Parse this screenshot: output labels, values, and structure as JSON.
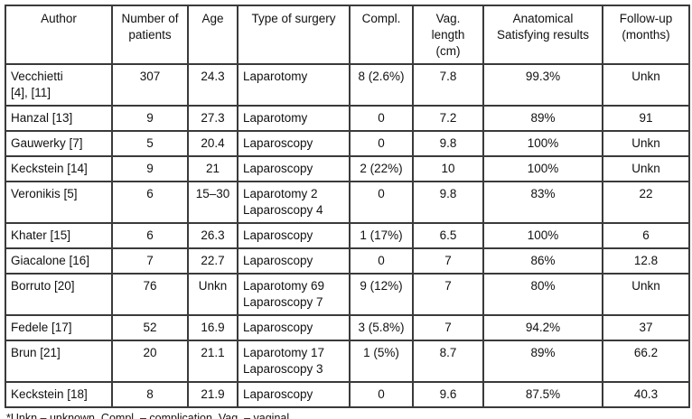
{
  "table": {
    "columns": [
      {
        "key": "author",
        "label": "Author",
        "width": 118
      },
      {
        "key": "patients",
        "label": "Number of\npatients",
        "width": 84
      },
      {
        "key": "age",
        "label": "Age",
        "width": 55
      },
      {
        "key": "surgery",
        "label": "Type of surgery",
        "width": 124
      },
      {
        "key": "compl",
        "label": "Compl.",
        "width": 70
      },
      {
        "key": "vag-length",
        "label": "Vag.\nlength\n(cm)",
        "width": 78
      },
      {
        "key": "anatomical",
        "label": "Anatomical\nSatisfying results",
        "width": 132
      },
      {
        "key": "follow-up",
        "label": "Follow-up\n(months)",
        "width": 96
      }
    ],
    "rows": [
      {
        "size": "tall",
        "cells": [
          "Vecchietti\n[4], [11]",
          "307",
          "24.3",
          "Laparotomy",
          "8 (2.6%)",
          "7.8",
          "99.3%",
          "Unkn"
        ]
      },
      {
        "size": "single",
        "cells": [
          "Hanzal [13]",
          "9",
          "27.3",
          "Laparotomy",
          "0",
          "7.2",
          "89%",
          "91"
        ]
      },
      {
        "size": "single",
        "cells": [
          "Gauwerky [7]",
          "5",
          "20.4",
          "Laparoscopy",
          "0",
          "9.8",
          "100%",
          "Unkn"
        ]
      },
      {
        "size": "single",
        "cells": [
          "Keckstein [14]",
          "9",
          "21",
          "Laparoscopy",
          "2 (22%)",
          "10",
          "100%",
          "Unkn"
        ]
      },
      {
        "size": "tall",
        "cells": [
          "Veronikis [5]",
          "6",
          "15–30",
          "Laparotomy 2\nLaparoscopy 4",
          "0",
          "9.8",
          "83%",
          "22"
        ]
      },
      {
        "size": "single",
        "cells": [
          "Khater [15]",
          "6",
          "26.3",
          "Laparoscopy",
          "1 (17%)",
          "6.5",
          "100%",
          "6"
        ]
      },
      {
        "size": "single",
        "cells": [
          "Giacalone [16]",
          "7",
          "22.7",
          "Laparoscopy",
          "0",
          "7",
          "86%",
          "12.8"
        ]
      },
      {
        "size": "tall",
        "cells": [
          "Borruto [20]",
          "76",
          "Unkn",
          "Laparotomy 69\nLaparoscopy 7",
          "9 (12%)",
          "7",
          "80%",
          "Unkn"
        ]
      },
      {
        "size": "single",
        "cells": [
          "Fedele [17]",
          "52",
          "16.9",
          "Laparoscopy",
          "3 (5.8%)",
          "7",
          "94.2%",
          "37"
        ]
      },
      {
        "size": "xtall",
        "cells": [
          "Brun [21]",
          "20",
          "21.1",
          "Laparotomy 17\nLaparoscopy 3",
          "1 (5%)",
          "8.7",
          "89%",
          "66.2"
        ]
      },
      {
        "size": "single",
        "cells": [
          "Keckstein [18]",
          "8",
          "21.9",
          "Laparoscopy",
          "0",
          "9.6",
          "87.5%",
          "40.3"
        ]
      }
    ],
    "left_aligned_columns": [
      0,
      3
    ]
  },
  "footnote": "*Unkn – unknown, Compl. – complication, Vag. – vaginal"
}
